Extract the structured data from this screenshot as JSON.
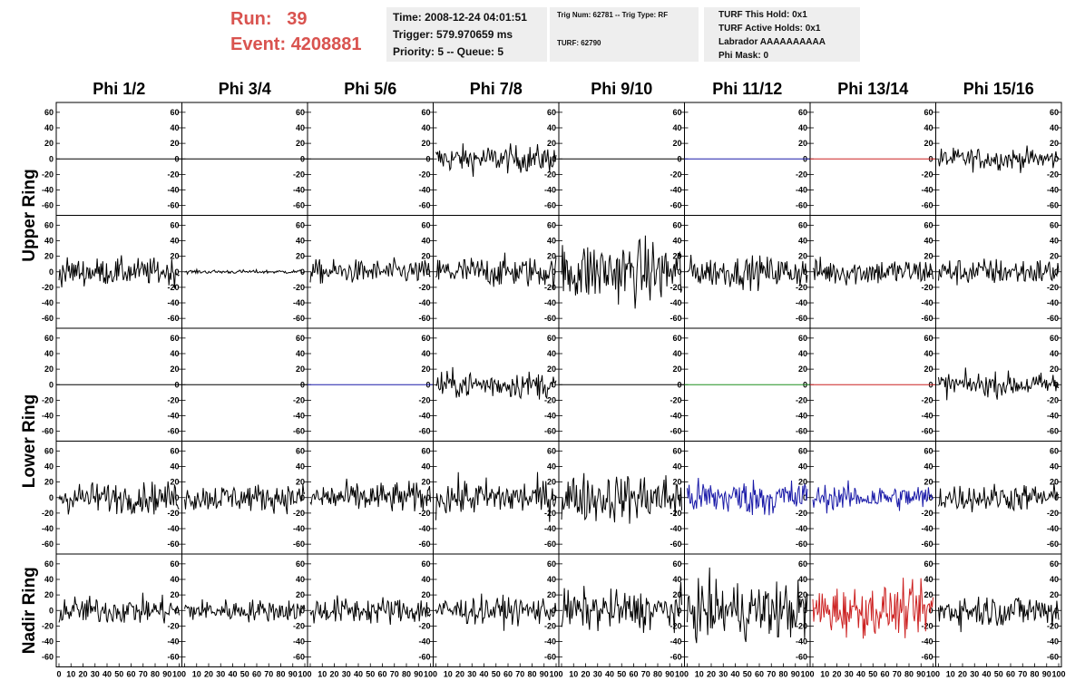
{
  "header": {
    "run_label": "Run:",
    "run_value": "39",
    "event_label": "Event:",
    "event_value": "4208881",
    "time_line": "Time: 2008-12-24 04:01:51",
    "trigger_line": "Trigger: 579.970659 ms",
    "priority_line": "Priority: 5 -- Queue: 5",
    "trig_line": "Trig Num: 62781 -- Trig Type: RF",
    "turf_line": "TURF: 62790",
    "turf_this_hold": "TURF This Hold: 0x1",
    "turf_active_holds": "TURF Active Holds: 0x1",
    "labrador": "Labrador AAAAAAAAAA",
    "phi_mask": "Phi Mask: 0",
    "accent_color": "#d9534f"
  },
  "chart_data": {
    "type": "line",
    "columns": [
      "Phi 1/2",
      "Phi 3/4",
      "Phi 5/6",
      "Phi 7/8",
      "Phi 9/10",
      "Phi 11/12",
      "Phi 13/14",
      "Phi 15/16"
    ],
    "ring_labels": [
      "Upper Ring",
      "Lower Ring",
      "Nadir Ring"
    ],
    "ylim": [
      -68,
      68
    ],
    "y_ticks": [
      -60,
      -40,
      -20,
      0,
      20,
      40,
      60
    ],
    "xlim": [
      0,
      100
    ],
    "x_ticks": [
      0,
      10,
      20,
      30,
      40,
      50,
      60,
      70,
      80,
      90,
      100
    ],
    "samples_per_trace": 130,
    "colors": {
      "black": "#000000",
      "blue": "#1a1aa8",
      "red": "#cc2020",
      "green": "#1f8f1f"
    },
    "rows": [
      {
        "traces": [
          {
            "amp": 0,
            "color": "black"
          },
          {
            "amp": 0,
            "color": "black"
          },
          {
            "amp": 0,
            "color": "black"
          },
          {
            "amp": 15,
            "color": "black"
          },
          {
            "amp": 0,
            "color": "black"
          },
          {
            "amp": 0,
            "color": "blue"
          },
          {
            "amp": 0,
            "color": "red"
          },
          {
            "amp": 12,
            "color": "black"
          }
        ]
      },
      {
        "traces": [
          {
            "amp": 15,
            "color": "black"
          },
          {
            "amp": 2,
            "color": "black"
          },
          {
            "amp": 13,
            "color": "black"
          },
          {
            "amp": 17,
            "color": "black"
          },
          {
            "amp": 35,
            "color": "black"
          },
          {
            "amp": 17,
            "color": "black"
          },
          {
            "amp": 15,
            "color": "black"
          },
          {
            "amp": 15,
            "color": "black"
          }
        ]
      },
      {
        "traces": [
          {
            "amp": 0,
            "color": "black"
          },
          {
            "amp": 0,
            "color": "black"
          },
          {
            "amp": 0,
            "color": "blue"
          },
          {
            "amp": 15,
            "color": "black"
          },
          {
            "amp": 0,
            "color": "black"
          },
          {
            "amp": 0,
            "color": "green"
          },
          {
            "amp": 0,
            "color": "red"
          },
          {
            "amp": 13,
            "color": "black"
          }
        ]
      },
      {
        "traces": [
          {
            "amp": 17,
            "color": "black"
          },
          {
            "amp": 15,
            "color": "black"
          },
          {
            "amp": 17,
            "color": "black"
          },
          {
            "amp": 20,
            "color": "black"
          },
          {
            "amp": 27,
            "color": "black"
          },
          {
            "amp": 20,
            "color": "blue"
          },
          {
            "amp": 14,
            "color": "blue"
          },
          {
            "amp": 15,
            "color": "black"
          }
        ]
      },
      {
        "traces": [
          {
            "amp": 15,
            "color": "black"
          },
          {
            "amp": 12,
            "color": "black"
          },
          {
            "amp": 15,
            "color": "black"
          },
          {
            "amp": 15,
            "color": "black"
          },
          {
            "amp": 22,
            "color": "black"
          },
          {
            "amp": 32,
            "color": "black"
          },
          {
            "amp": 27,
            "color": "red"
          },
          {
            "amp": 18,
            "color": "black"
          }
        ]
      }
    ]
  }
}
